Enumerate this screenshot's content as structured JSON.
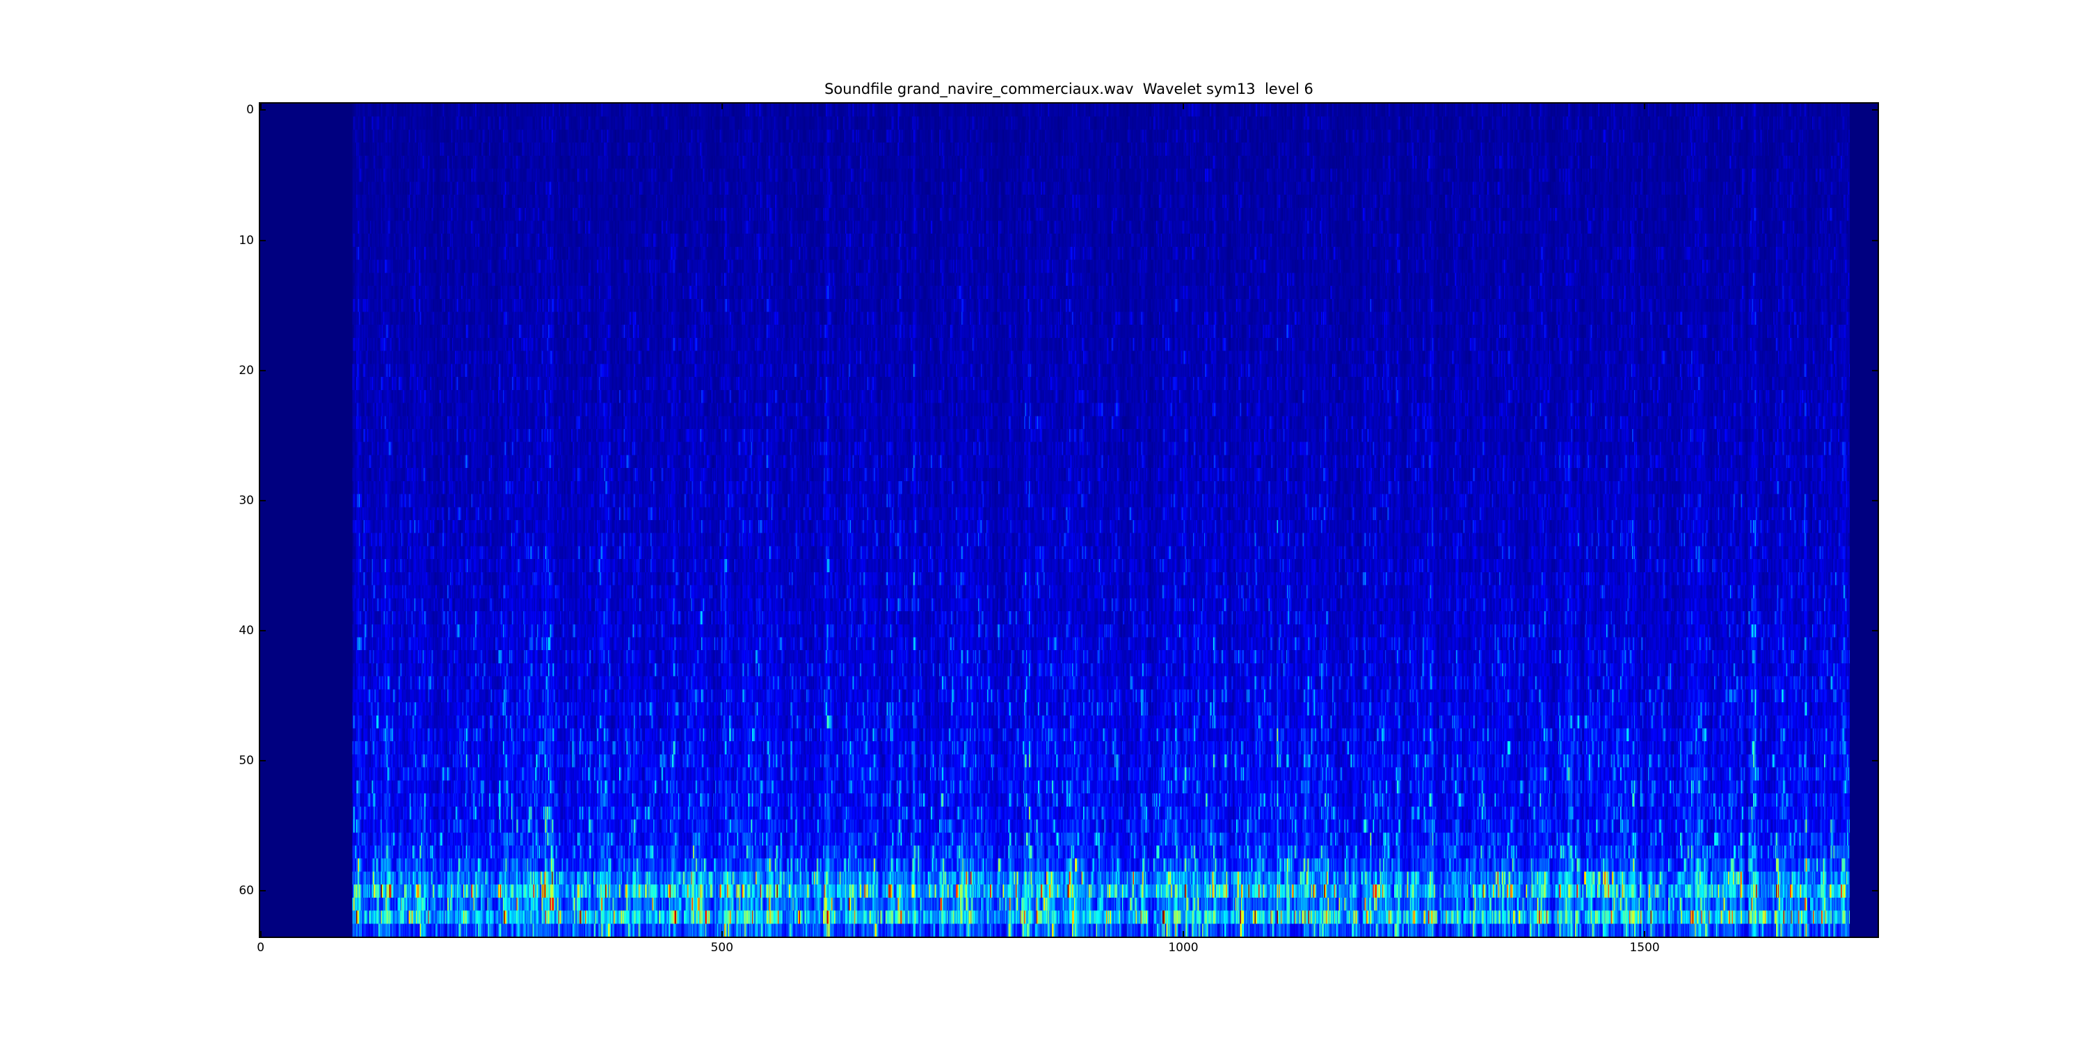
{
  "chart_data": {
    "type": "heatmap",
    "title": "Soundfile grand_navire_commerciaux.wav  Wavelet sym13  level 6",
    "xlabel": "",
    "ylabel": "",
    "colormap": "jet",
    "background_color": "#000080",
    "rows": 64,
    "cols": 1753,
    "x_range": [
      -0.5,
      1752.5
    ],
    "y_range": [
      -0.5,
      63.5
    ],
    "x_ticks": [
      0,
      500,
      1000,
      1500
    ],
    "y_ticks": [
      0,
      10,
      20,
      30,
      40,
      50,
      60
    ],
    "grid": false,
    "legend": "none",
    "active_cols": [
      100,
      1723
    ],
    "row_profile": [
      0.05,
      0.052,
      0.053,
      0.055,
      0.056,
      0.058,
      0.059,
      0.061,
      0.062,
      0.064,
      0.065,
      0.067,
      0.068,
      0.07,
      0.072,
      0.074,
      0.076,
      0.078,
      0.08,
      0.082,
      0.084,
      0.086,
      0.088,
      0.09,
      0.092,
      0.095,
      0.097,
      0.099,
      0.101,
      0.104,
      0.107,
      0.11,
      0.113,
      0.116,
      0.119,
      0.122,
      0.125,
      0.128,
      0.131,
      0.135,
      0.139,
      0.143,
      0.147,
      0.151,
      0.156,
      0.161,
      0.166,
      0.172,
      0.18,
      0.188,
      0.195,
      0.2,
      0.202,
      0.206,
      0.212,
      0.222,
      0.238,
      0.262,
      0.3,
      0.43,
      0.52,
      0.39,
      0.545,
      0.33
    ],
    "noise": {
      "seed": 20130613,
      "column_smooth": 0.5,
      "column_base": 0.38,
      "column_variation": 1.0,
      "column_exponent": 1.7,
      "burst_probability": 0.02,
      "burst_gain": 1.5,
      "cell_low": 0.35,
      "cell_high": 1.15,
      "spike_probability": 0.1,
      "spike_min": 1.25,
      "spike_max": 2.9,
      "row_smooth": 0.35
    }
  },
  "axes_style": {
    "tick_length": 8,
    "tick_width": 2,
    "spine_color": "#000000"
  }
}
